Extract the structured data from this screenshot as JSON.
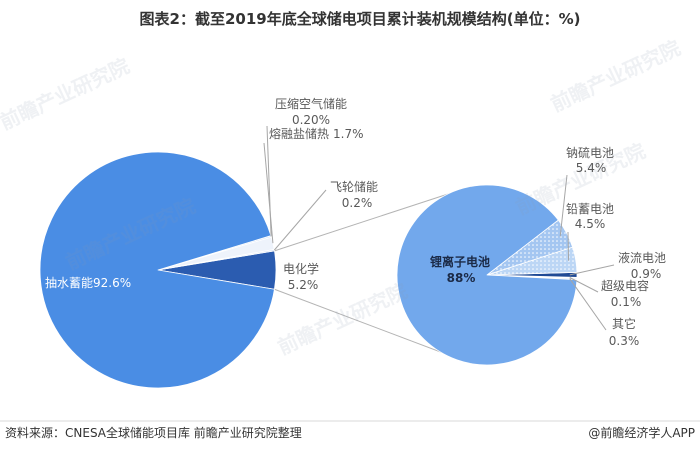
{
  "title": "图表2：截至2019年底全球储电项目累计装机规模结构(单位：%)",
  "watermark": "前瞻产业研究院",
  "footer": {
    "source": "资料来源：CNESA全球储能项目库 前瞻产业研究院整理",
    "brand": "@前瞻经济学人APP"
  },
  "colors": {
    "title": "#333333",
    "label_text": "#595959",
    "inner_label": "#1b2a47",
    "leader_line": "#a6a6a6",
    "connector_line": "#b4b4b4",
    "footer_text": "#333333",
    "footer_divider": "#d9d9d9",
    "watermark": "#8a9bb0"
  },
  "chart_data": [
    {
      "type": "pie",
      "categories": [
        "抽水蓄能",
        "电化学",
        "飞轮储能",
        "熔融盐储热",
        "压缩空气储能"
      ],
      "values": [
        92.6,
        5.2,
        0.2,
        1.7,
        0.2
      ],
      "value_labels": [
        "92.6%",
        "5.2%",
        "0.2%",
        "1.7%",
        "0.20%"
      ],
      "colors": [
        "#4a8de4",
        "#2b5cb0",
        "#d6e3f6",
        "#eef3fb",
        "#d6e3f6"
      ]
    },
    {
      "type": "pie",
      "categories": [
        "锂离子电池",
        "钠硫电池",
        "铅蓄电池",
        "液流电池",
        "超级电容",
        "其它"
      ],
      "values": [
        88,
        5.4,
        4.5,
        0.9,
        0.1,
        0.3
      ],
      "value_labels": [
        "88%",
        "5.4%",
        "4.5%",
        "0.9%",
        "0.1%",
        "0.3%"
      ],
      "colors": [
        "#72a8ec",
        "#a4c6f1",
        "#bcd6f5",
        "#1f4a95",
        "#d3e2f7",
        "#e9f0fb"
      ],
      "patterned": [
        false,
        true,
        true,
        false,
        false,
        false
      ]
    }
  ]
}
